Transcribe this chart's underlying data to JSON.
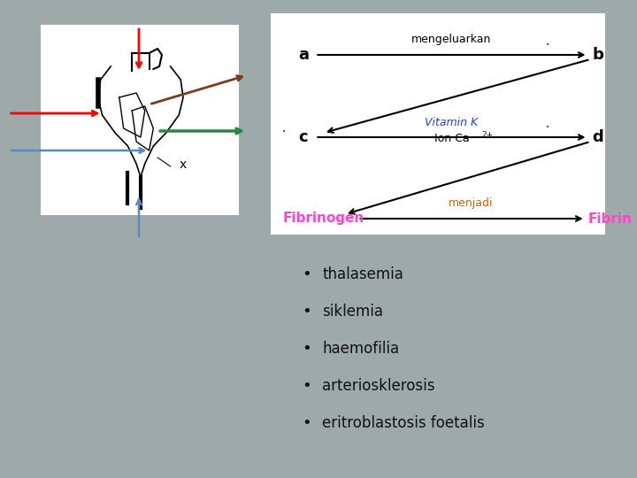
{
  "background_color": "#9eaaaa",
  "bullet_items": [
    "thalasemia",
    "siklemia",
    "haemofilia",
    "arteriosklerosis",
    "eritroblastosis foetalis"
  ],
  "bullet_color": "#111111",
  "bullet_fontsize": 12,
  "diagram_bg": "#ffffff",
  "heart_bg": "#ffffff",
  "fibrinogen_color": "#ff44cc",
  "fibrin_color": "#ff44cc",
  "menjadi_color": "#cc6600",
  "vitk_color": "#2244cc",
  "arrow_color": "#111111",
  "label_color": "#111111",
  "dot_color": "#555555"
}
